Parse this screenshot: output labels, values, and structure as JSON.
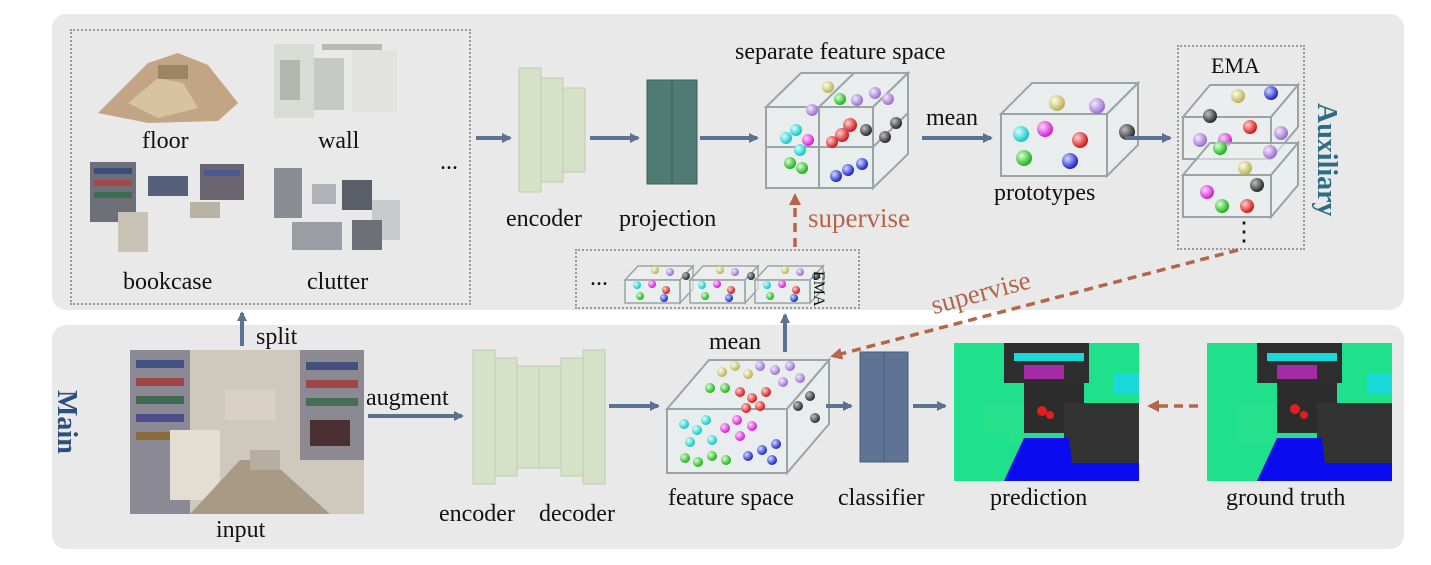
{
  "auxiliary": {
    "side_label": "Auxiliary",
    "class_labels": [
      "floor",
      "wall",
      "bookcase",
      "clutter"
    ],
    "ellipsis": "...",
    "encoder_label": "encoder",
    "projection_label": "projection",
    "separate_space_label": "separate feature space",
    "mean_label": "mean",
    "prototypes_label": "prototypes",
    "ema_label": "EMA",
    "vertical_ellipsis": "⋮",
    "supervise_label": "supervise",
    "ema_row_label": "EMA",
    "ema_row_ellipsis": "..."
  },
  "main": {
    "side_label": "Main",
    "split_label": "split",
    "input_label": "input",
    "augment_label": "augment",
    "encoder_label": "encoder",
    "decoder_label": "decoder",
    "feature_space_label": "feature space",
    "mean_label": "mean",
    "classifier_label": "classifier",
    "prediction_label": "prediction",
    "ground_truth_label": "ground truth",
    "supervise_label": "supervise"
  },
  "colors": {
    "panel": "#e9e9ea",
    "encoder": "#d6e2c7",
    "projection": "#4f7b74",
    "classifier": "#5f7394",
    "arrow": "#5b7292",
    "supervise": "#b5654a",
    "auxiliary_text": "#2c6d83",
    "main_text": "#2d4f7e"
  }
}
